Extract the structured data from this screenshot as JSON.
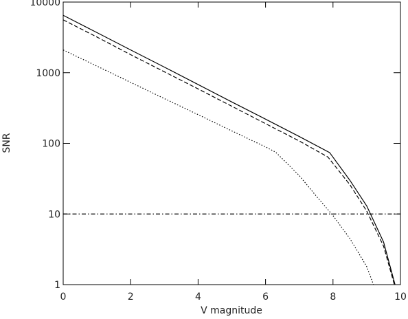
{
  "chart_data": {
    "type": "line",
    "xlabel": "V magnitude",
    "ylabel": "SNR",
    "xlim": [
      0,
      10
    ],
    "ylim": [
      1,
      10000
    ],
    "yscale": "log",
    "xticks": [
      0,
      2,
      4,
      6,
      8,
      10
    ],
    "yticks": [
      1,
      10,
      100,
      1000,
      10000
    ],
    "series": [
      {
        "color": "#000000",
        "style": "solid",
        "x": [
          0,
          1,
          2,
          3,
          4,
          5,
          6,
          7,
          7.9,
          8.5,
          9,
          9.5,
          9.84
        ],
        "values": [
          6500,
          3700,
          2100,
          1200,
          680,
          385,
          220,
          125,
          74,
          30,
          13,
          4,
          1
        ]
      },
      {
        "color": "#000000",
        "style": "dashed",
        "x": [
          0,
          1,
          2,
          3,
          4,
          5,
          6,
          7,
          7.85,
          8.5,
          9,
          9.5,
          9.82
        ],
        "values": [
          5600,
          3200,
          1800,
          1030,
          590,
          335,
          190,
          108,
          64,
          26,
          11,
          3.5,
          1
        ]
      },
      {
        "color": "#000000",
        "style": "dotted",
        "x": [
          0,
          1,
          2,
          3,
          4,
          5,
          6,
          6.3,
          7,
          7.5,
          8,
          8.5,
          9,
          9.2
        ],
        "values": [
          2100,
          1240,
          730,
          430,
          255,
          150,
          89,
          75,
          35,
          18,
          9.5,
          4.5,
          1.8,
          1
        ]
      },
      {
        "color": "#000000",
        "style": "dashdot",
        "x": [
          0,
          10
        ],
        "values": [
          10,
          10
        ]
      }
    ]
  }
}
